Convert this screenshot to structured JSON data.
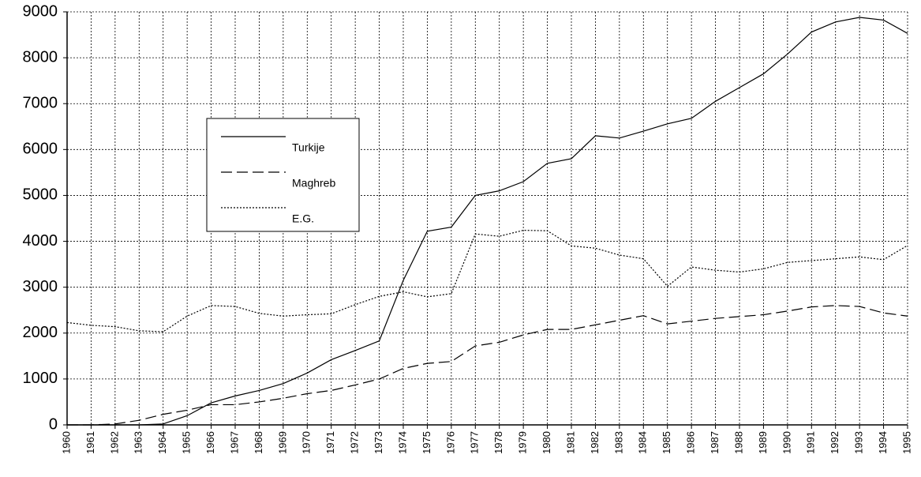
{
  "chart_data": {
    "type": "line",
    "categories": [
      "1960",
      "1961",
      "1962",
      "1963",
      "1964",
      "1965",
      "1966",
      "1967",
      "1968",
      "1969",
      "1970",
      "1971",
      "1972",
      "1973",
      "1974",
      "1975",
      "1976",
      "1977",
      "1978",
      "1979",
      "1980",
      "1981",
      "1982",
      "1983",
      "1984",
      "1985",
      "1986",
      "1987",
      "1988",
      "1989",
      "1990",
      "1991",
      "1992",
      "1993",
      "1994",
      "1995"
    ],
    "series": [
      {
        "name": "Turkije",
        "color": "#000000",
        "dash": "solid",
        "values": [
          0,
          0,
          0,
          0,
          20,
          200,
          480,
          630,
          750,
          900,
          1130,
          1420,
          1620,
          1830,
          3150,
          4220,
          4310,
          5000,
          5100,
          5300,
          5700,
          5800,
          6300,
          6250,
          6400,
          6560,
          6680,
          7050,
          7350,
          7650,
          8080,
          8560,
          8780,
          8880,
          8820,
          8530
        ]
      },
      {
        "name": "Maghreb",
        "color": "#000000",
        "dash": "dashed",
        "values": [
          0,
          0,
          20,
          100,
          230,
          320,
          440,
          440,
          500,
          580,
          680,
          750,
          870,
          1000,
          1230,
          1340,
          1380,
          1720,
          1800,
          1960,
          2080,
          2080,
          2180,
          2280,
          2380,
          2200,
          2260,
          2320,
          2360,
          2400,
          2480,
          2570,
          2600,
          2580,
          2440,
          2370
        ]
      },
      {
        "name": "E.G.",
        "color": "#000000",
        "dash": "dotted",
        "values": [
          2230,
          2170,
          2140,
          2050,
          2030,
          2370,
          2600,
          2580,
          2430,
          2370,
          2400,
          2420,
          2620,
          2800,
          2900,
          2790,
          2860,
          4160,
          4110,
          4240,
          4230,
          3900,
          3850,
          3700,
          3620,
          3020,
          3440,
          3370,
          3330,
          3400,
          3540,
          3580,
          3620,
          3660,
          3600,
          3910
        ]
      }
    ],
    "ylim": [
      0,
      9000
    ],
    "yticks": [
      0,
      1000,
      2000,
      3000,
      4000,
      5000,
      6000,
      7000,
      8000,
      9000
    ],
    "grid": true
  }
}
